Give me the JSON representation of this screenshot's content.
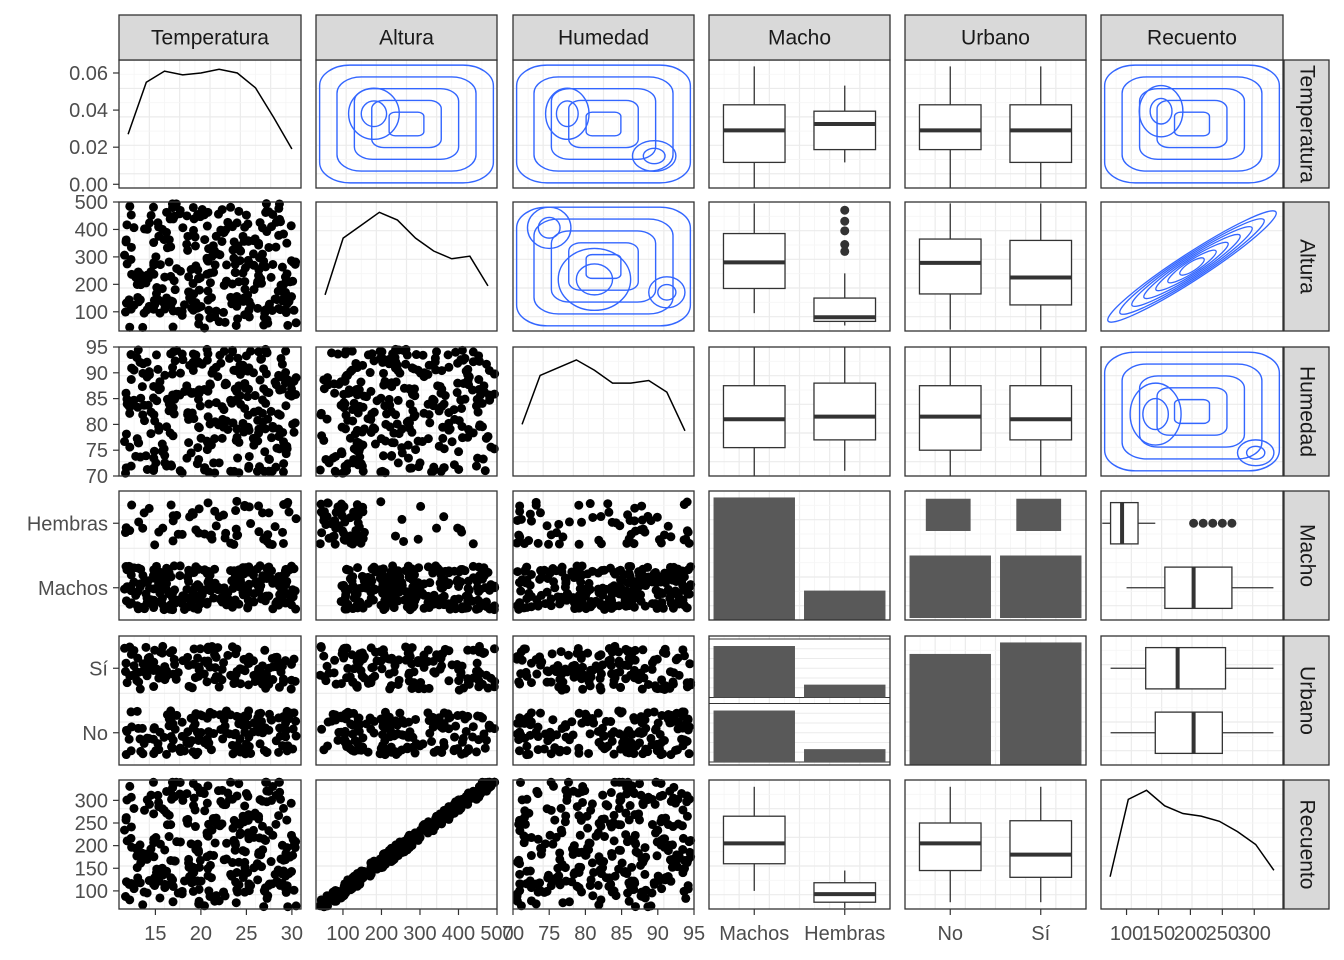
{
  "chart_data": {
    "type": "scatter",
    "title": "",
    "variables": [
      "Temperatura",
      "Altura",
      "Humedad",
      "Macho",
      "Urbano",
      "Recuento"
    ],
    "variable_types": {
      "Temperatura": "continuous",
      "Altura": "continuous",
      "Humedad": "continuous",
      "Macho": "discrete",
      "Urbano": "discrete",
      "Recuento": "continuous"
    },
    "levels": {
      "Macho": [
        "Machos",
        "Hembras"
      ],
      "Urbano": [
        "No",
        "Sí"
      ]
    },
    "ranges": {
      "Temperatura": [
        11,
        31
      ],
      "Altura": [
        30,
        500
      ],
      "Humedad": [
        70,
        95
      ],
      "Recuento": [
        60,
        345
      ]
    },
    "x_ticks": {
      "Temperatura": [
        15,
        20,
        25,
        30
      ],
      "Altura": [
        100,
        200,
        300,
        400,
        500
      ],
      "Humedad": [
        70,
        75,
        80,
        85,
        90,
        95
      ],
      "Macho": [
        "Machos",
        "Hembras"
      ],
      "Urbano": [
        "No",
        "Sí"
      ],
      "Recuento": [
        100,
        150,
        200,
        250,
        300
      ]
    },
    "y_ticks": {
      "Temperatura": [
        0.0,
        0.02,
        0.04,
        0.06
      ],
      "Temperatura_labels": [
        "0.00",
        "0.02",
        "0.04",
        "0.06"
      ],
      "Altura": [
        100,
        200,
        300,
        400,
        500
      ],
      "Humedad": [
        70,
        75,
        80,
        85,
        90,
        95
      ],
      "Macho": [
        "Machos",
        "Hembras"
      ],
      "Urbano": [
        "No",
        "Sí"
      ],
      "Recuento": [
        100,
        150,
        200,
        250,
        300
      ]
    },
    "density_temperatura": {
      "x": [
        12,
        14,
        16,
        18,
        20,
        22,
        24,
        26,
        28,
        30
      ],
      "y": [
        0.027,
        0.055,
        0.061,
        0.059,
        0.06,
        0.062,
        0.06,
        0.052,
        0.036,
        0.019
      ],
      "ylim": [
        -0.002,
        0.067
      ]
    },
    "counts": {
      "Macho": {
        "Machos": 250,
        "Hembras": 60
      },
      "Urbano": {
        "No": 145,
        "Sí": 160
      }
    },
    "boxplots": {
      "Temperatura_by_Macho": {
        "Machos": [
          11,
          15,
          20,
          24,
          30
        ],
        "Hembras": [
          15,
          17,
          21,
          23,
          27
        ]
      },
      "Temperatura_by_Urbano": {
        "No": [
          11,
          17,
          20,
          24,
          30
        ],
        "Sí": [
          11,
          15,
          20,
          24,
          30
        ]
      },
      "Altura_by_Macho": {
        "Machos": [
          95,
          185,
          280,
          385,
          495
        ],
        "Hembras": [
          50,
          65,
          80,
          150,
          240
        ]
      },
      "Altura_by_Urbano": {
        "No": [
          35,
          165,
          278,
          365,
          495
        ],
        "Sí": [
          35,
          125,
          225,
          360,
          495
        ]
      },
      "Humedad_by_Macho": {
        "Machos": [
          70,
          75.5,
          81,
          87.5,
          95
        ],
        "Hembras": [
          71,
          77,
          81.5,
          88,
          95
        ]
      },
      "Humedad_by_Urbano": {
        "No": [
          70,
          75,
          81.5,
          87.5,
          95
        ],
        "Sí": [
          70,
          77,
          81,
          87.5,
          95
        ]
      },
      "Recuento_by_Macho": {
        "Machos": [
          100,
          160,
          205,
          265,
          330
        ],
        "Hembras": [
          62,
          75,
          93,
          118,
          145
        ]
      },
      "Recuento_by_Urbano": {
        "No": [
          75,
          145,
          205,
          250,
          330
        ],
        "Sí": [
          75,
          130,
          180,
          255,
          330
        ]
      }
    },
    "strip_color": "#d9d9d9",
    "contour_color": "#3366ff",
    "point_color": "#000000",
    "bar_color": "#595959"
  }
}
